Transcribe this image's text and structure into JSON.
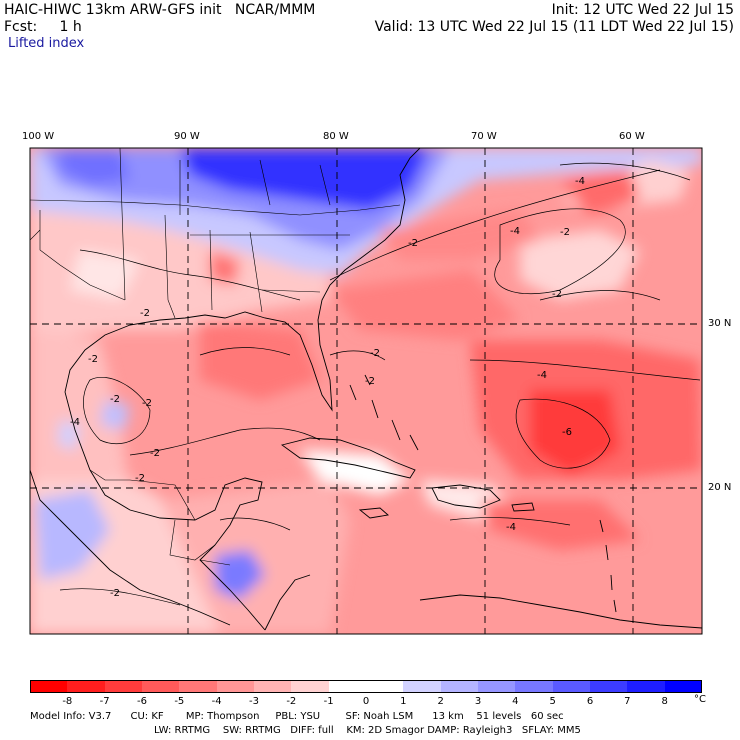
{
  "header": {
    "left_line1": "HAIC-HIWC 13km ARW-GFS init   NCAR/MMM",
    "left_line2": "Fcst:     1 h",
    "right_line1": "Init: 12 UTC Wed 22 Jul 15",
    "right_line2": "Valid: 13 UTC Wed 22 Jul 15 (11 LDT Wed 22 Jul 15)",
    "field_label": "Lifted index"
  },
  "map": {
    "lon_labels": [
      "100 W",
      "90 W",
      "80 W",
      "70 W",
      "60 W"
    ],
    "lat_labels": [
      "30 N",
      "20 N"
    ],
    "contour_labels": [
      "-2",
      "-4",
      "-2",
      "-4",
      "-2",
      "-2",
      "-2",
      "-2",
      "-2",
      "-2",
      "-2",
      "-2",
      "-4",
      "-6",
      "-4",
      "-2",
      "-4",
      "-2"
    ]
  },
  "colorbar": {
    "colors": [
      "#ff0000",
      "#ff1e1e",
      "#ff3c3c",
      "#ff5a5a",
      "#ff7878",
      "#ff9696",
      "#ffb4b4",
      "#ffd2d2",
      "#ffffff",
      "#ffffff",
      "#d2d2ff",
      "#b4b4ff",
      "#9696ff",
      "#7878ff",
      "#5a5aff",
      "#3c3cff",
      "#1e1eff",
      "#0000ff"
    ],
    "ticks": [
      "-8",
      "-7",
      "-6",
      "-5",
      "-4",
      "-3",
      "-2",
      "-1",
      "0",
      "1",
      "2",
      "3",
      "4",
      "5",
      "6",
      "7",
      "8"
    ],
    "unit": "°C"
  },
  "footer": {
    "line1": "Model Info: V3.7      CU: KF       MP: Thompson     PBL: YSU        SF: Noah LSM      13 km    51 levels   60 sec",
    "line2": "LW: RRTMG    SW: RRTMG   DIFF: full    KM: 2D Smagor DAMP: Rayleigh3   SFLAY: MM5"
  }
}
